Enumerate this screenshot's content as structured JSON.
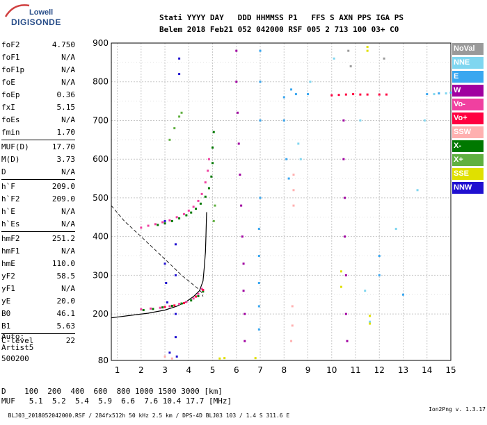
{
  "logo": {
    "line1": "Lowell",
    "line2": "DIGISONDE"
  },
  "header": {
    "line1": "Stati YYYY DAY   DDD HHMMSS P1   FFS S AXN PPS IGA PS",
    "line2": "Belem 2018 Feb21 052 042000 RSF 005 2 713 100 03+ C0"
  },
  "params": [
    {
      "k": "foF2",
      "v": "4.750"
    },
    {
      "k": "foF1",
      "v": "N/A"
    },
    {
      "k": "foF1p",
      "v": "N/A"
    },
    {
      "k": "foE",
      "v": "N/A"
    },
    {
      "k": "foEp",
      "v": "0.36"
    },
    {
      "k": "fxI",
      "v": "5.15"
    },
    {
      "k": "foEs",
      "v": "N/A"
    },
    {
      "k": "fmin",
      "v": "1.70"
    },
    {
      "sep": true
    },
    {
      "k": "MUF(D)",
      "v": "17.70"
    },
    {
      "k": "M(D)",
      "v": "3.73"
    },
    {
      "k": "D",
      "v": "N/A"
    },
    {
      "sep": true
    },
    {
      "k": "h`F",
      "v": "209.0"
    },
    {
      "k": "h`F2",
      "v": "209.0"
    },
    {
      "k": "h`E",
      "v": "N/A"
    },
    {
      "k": "h`Es",
      "v": "N/A"
    },
    {
      "sep": true
    },
    {
      "k": "hmF2",
      "v": "251.2"
    },
    {
      "k": "hmF1",
      "v": "N/A"
    },
    {
      "k": "hmE",
      "v": "110.0"
    },
    {
      "k": "yF2",
      "v": "58.5"
    },
    {
      "k": "yF1",
      "v": "N/A"
    },
    {
      "k": "yE",
      "v": "20.0"
    },
    {
      "k": "B0",
      "v": "46.1"
    },
    {
      "k": "B1",
      "v": "5.63"
    },
    {
      "sep": true
    },
    {
      "k": "C-level",
      "v": "22"
    }
  ],
  "auto": {
    "line1": "Auto:",
    "line2": "Artist5",
    "line3": "500200"
  },
  "d_table": {
    "d_row": "D    100  200  400  600  800 1000 1500 3000 [km]",
    "muf_row": "MUF   5.1  5.2  5.4  5.9  6.6  7.6 10.4 17.7 [MHz]"
  },
  "footer": {
    "left": "BLJ03_2018052042000.RSF / 284fx512h 50 kHz 2.5 km / DPS-4D BLJ03 103 / 1.4 S 311.6 E",
    "right": "Ion2Png v. 1.3.17"
  },
  "legend": [
    {
      "label": "NoVal",
      "color": "#9a9a9a"
    },
    {
      "label": "NNE",
      "color": "#7fd6f0"
    },
    {
      "label": "E",
      "color": "#3aa7f0"
    },
    {
      "label": "W",
      "color": "#a000a0"
    },
    {
      "label": "Vo-",
      "color": "#f040a0"
    },
    {
      "label": "Vo+",
      "color": "#ff0040"
    },
    {
      "label": "SSW",
      "color": "#ffb0b0"
    },
    {
      "label": "X-",
      "color": "#007800"
    },
    {
      "label": "X+",
      "color": "#60b040"
    },
    {
      "label": "SSE",
      "color": "#e0e000"
    },
    {
      "label": "NNW",
      "color": "#2010d0"
    }
  ],
  "chart_data": {
    "type": "scatter",
    "xlabel": "",
    "ylabel": "",
    "xlim": [
      0.75,
      15.0
    ],
    "ylim": [
      80,
      900
    ],
    "xticks": [
      "1",
      "2",
      "3",
      "4",
      "5",
      "6",
      "7",
      "8",
      "9",
      "10",
      "11",
      "12",
      "13",
      "14",
      "15"
    ],
    "yticks": [
      "80",
      "200",
      "300",
      "400",
      "500",
      "600",
      "700",
      "800",
      "900"
    ],
    "grid": true,
    "series": [
      {
        "name": "Vo-",
        "color": "#f040a0",
        "points": [
          [
            2.0,
            423
          ],
          [
            2.3,
            428
          ],
          [
            2.6,
            432
          ],
          [
            2.9,
            437
          ],
          [
            3.2,
            442
          ],
          [
            3.5,
            450
          ],
          [
            3.8,
            458
          ],
          [
            4.0,
            467
          ],
          [
            4.2,
            477
          ],
          [
            4.4,
            492
          ],
          [
            4.55,
            510
          ],
          [
            4.7,
            540
          ],
          [
            4.8,
            570
          ],
          [
            4.85,
            600
          ],
          [
            2.0,
            212
          ],
          [
            2.4,
            214
          ],
          [
            2.8,
            216
          ],
          [
            3.2,
            220
          ],
          [
            3.6,
            226
          ],
          [
            3.9,
            231
          ],
          [
            4.2,
            240
          ],
          [
            4.4,
            252
          ],
          [
            4.55,
            265
          ]
        ]
      },
      {
        "name": "X-",
        "color": "#007800",
        "points": [
          [
            2.7,
            430
          ],
          [
            3.0,
            434
          ],
          [
            3.3,
            440
          ],
          [
            3.6,
            447
          ],
          [
            3.9,
            455
          ],
          [
            4.1,
            462
          ],
          [
            4.3,
            472
          ],
          [
            4.5,
            485
          ],
          [
            4.7,
            503
          ],
          [
            4.85,
            525
          ],
          [
            4.95,
            555
          ],
          [
            5.0,
            590
          ],
          [
            5.0,
            630
          ],
          [
            5.05,
            670
          ],
          [
            2.1,
            210
          ],
          [
            2.5,
            213
          ],
          [
            2.9,
            217
          ],
          [
            3.3,
            221
          ],
          [
            3.7,
            227
          ],
          [
            4.1,
            235
          ],
          [
            4.4,
            246
          ],
          [
            4.6,
            258
          ]
        ]
      },
      {
        "name": "Vo+",
        "color": "#ff0040",
        "points": [
          [
            10.0,
            765
          ],
          [
            10.3,
            766
          ],
          [
            10.6,
            767
          ],
          [
            10.9,
            768
          ],
          [
            11.2,
            767
          ],
          [
            11.5,
            767
          ],
          [
            12.0,
            767
          ],
          [
            12.3,
            767
          ],
          [
            3.0,
            218
          ],
          [
            3.4,
            222
          ],
          [
            3.8,
            228
          ],
          [
            4.3,
            245
          ],
          [
            4.6,
            262
          ]
        ]
      },
      {
        "name": "W",
        "color": "#a000a0",
        "points": [
          [
            6.0,
            880
          ],
          [
            6.0,
            800
          ],
          [
            6.05,
            720
          ],
          [
            6.1,
            640
          ],
          [
            6.15,
            560
          ],
          [
            6.2,
            480
          ],
          [
            6.25,
            400
          ],
          [
            6.3,
            330
          ],
          [
            6.3,
            260
          ],
          [
            6.35,
            200
          ],
          [
            6.35,
            130
          ],
          [
            10.5,
            700
          ],
          [
            10.5,
            600
          ],
          [
            10.55,
            500
          ],
          [
            10.55,
            400
          ],
          [
            10.6,
            300
          ],
          [
            10.6,
            200
          ],
          [
            10.65,
            130
          ]
        ]
      },
      {
        "name": "E",
        "color": "#3aa7f0",
        "points": [
          [
            7.0,
            880
          ],
          [
            7.0,
            800
          ],
          [
            7.0,
            700
          ],
          [
            7.0,
            500
          ],
          [
            6.95,
            420
          ],
          [
            6.95,
            350
          ],
          [
            6.95,
            280
          ],
          [
            6.95,
            220
          ],
          [
            6.95,
            160
          ],
          [
            8.0,
            760
          ],
          [
            8.0,
            700
          ],
          [
            8.1,
            600
          ],
          [
            8.2,
            550
          ],
          [
            8.3,
            780
          ],
          [
            8.5,
            768
          ],
          [
            9.0,
            768
          ],
          [
            12.0,
            300
          ],
          [
            12.0,
            350
          ],
          [
            13.0,
            250
          ],
          [
            14.0,
            768
          ],
          [
            14.5,
            770
          ],
          [
            15.0,
            772
          ]
        ]
      },
      {
        "name": "NNE",
        "color": "#7fd6f0",
        "points": [
          [
            8.6,
            640
          ],
          [
            8.7,
            600
          ],
          [
            9.1,
            800
          ],
          [
            10.1,
            860
          ],
          [
            11.2,
            700
          ],
          [
            11.4,
            260
          ],
          [
            11.6,
            180
          ],
          [
            12.7,
            420
          ],
          [
            13.6,
            520
          ],
          [
            13.9,
            700
          ],
          [
            14.3,
            768
          ],
          [
            14.8,
            770
          ]
        ]
      },
      {
        "name": "NNW",
        "color": "#2010d0",
        "points": [
          [
            3.0,
            440
          ],
          [
            3.0,
            330
          ],
          [
            3.05,
            280
          ],
          [
            3.45,
            380
          ],
          [
            3.45,
            300
          ],
          [
            3.45,
            200
          ],
          [
            3.45,
            140
          ],
          [
            3.5,
            90
          ],
          [
            3.6,
            860
          ],
          [
            3.6,
            820
          ],
          [
            3.1,
            230
          ],
          [
            3.2,
            100
          ]
        ]
      },
      {
        "name": "SSW",
        "color": "#ffb0b0",
        "points": [
          [
            8.4,
            560
          ],
          [
            8.4,
            520
          ],
          [
            8.4,
            480
          ],
          [
            8.35,
            220
          ],
          [
            8.35,
            170
          ],
          [
            8.3,
            130
          ],
          [
            3.0,
            90
          ],
          [
            3.3,
            85
          ]
        ]
      },
      {
        "name": "X+",
        "color": "#60b040",
        "points": [
          [
            3.2,
            650
          ],
          [
            3.4,
            680
          ],
          [
            3.6,
            710
          ],
          [
            3.7,
            720
          ],
          [
            5.1,
            480
          ],
          [
            5.05,
            440
          ]
        ]
      },
      {
        "name": "SSE",
        "color": "#e0e000",
        "points": [
          [
            10.4,
            310
          ],
          [
            10.4,
            270
          ],
          [
            11.5,
            890
          ],
          [
            11.5,
            880
          ],
          [
            11.6,
            195
          ],
          [
            11.6,
            175
          ],
          [
            5.3,
            85
          ],
          [
            5.5,
            86
          ],
          [
            6.8,
            86
          ]
        ]
      },
      {
        "name": "NoVal",
        "color": "#9a9a9a",
        "points": [
          [
            10.7,
            880
          ],
          [
            10.8,
            840
          ],
          [
            12.2,
            860
          ]
        ]
      }
    ],
    "profile_solid": [
      [
        0.75,
        190
      ],
      [
        1.5,
        196
      ],
      [
        2.3,
        202
      ],
      [
        3.0,
        210
      ],
      [
        3.5,
        220
      ],
      [
        3.9,
        232
      ],
      [
        4.2,
        245
      ],
      [
        4.45,
        260
      ],
      [
        4.6,
        285
      ],
      [
        4.65,
        320
      ],
      [
        4.7,
        360
      ],
      [
        4.72,
        400
      ],
      [
        4.74,
        440
      ],
      [
        4.75,
        463
      ]
    ],
    "profile_dashed": [
      [
        0.75,
        480
      ],
      [
        1.3,
        440
      ],
      [
        2.0,
        400
      ],
      [
        2.6,
        365
      ],
      [
        3.2,
        330
      ],
      [
        3.7,
        300
      ],
      [
        4.1,
        280
      ],
      [
        4.4,
        265
      ],
      [
        4.55,
        255
      ],
      [
        4.6,
        245
      ]
    ]
  }
}
